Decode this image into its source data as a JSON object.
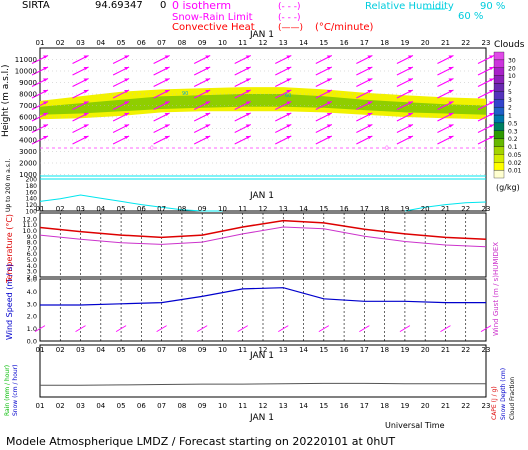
{
  "header": {
    "station": "SIRTA",
    "code": "94.69347",
    "hour_unit": "0",
    "legend_zero_isotherm": "0 isotherm",
    "legend_snow_rain": "Snow-Rain Limit",
    "legend_convective": "Convective Heat",
    "legend_convective_unit": "(°C/minute)",
    "legend_rh": "Relative Humidity",
    "legend_rh_90": "90 %",
    "legend_rh_60": "60 %",
    "legend_sym_dash": "(- - -)",
    "legend_sym_solid": "(——)"
  },
  "footer": {
    "model_line": "Modele Atmospherique LMDZ / Forecast starting on 20220101 at 0hUT",
    "universal_time": "Universal Time"
  },
  "axis": {
    "hours": [
      "01",
      "02",
      "03",
      "04",
      "05",
      "06",
      "07",
      "08",
      "09",
      "10",
      "11",
      "12",
      "13",
      "14",
      "15",
      "16",
      "17",
      "18",
      "19",
      "20",
      "21",
      "22",
      "23"
    ],
    "day_label": "JAN   1"
  },
  "colors": {
    "wind_arrow": "#ff00ff",
    "temperature": "#dd0000",
    "humidex": "#cc33cc",
    "zero_isotherm": "#ff66ff",
    "rel_humidity": "#00e5ee",
    "wind_speed": "#0000cc",
    "precip_line": "#555555",
    "cloud_yellow": "#f2f200",
    "cloud_green": "#8fce00",
    "cloud_green_dark": "#55aa00"
  },
  "chart_data": [
    {
      "panel": "clouds_height",
      "type": "heatmap",
      "ylabel": "Height (m a.s.l.)",
      "ylim": [
        0,
        12000
      ],
      "yticks": [
        1000,
        2000,
        3000,
        4000,
        5000,
        6000,
        7000,
        8000,
        9000,
        10000,
        11000
      ],
      "zero_isotherm_height_m": 3000,
      "zero_isotherm_markers": [
        "0",
        "0"
      ],
      "rh_90_contour_label": "90",
      "rh_60_contour_label": "60",
      "cloud_layer": {
        "x_hours": [
          1,
          3,
          5,
          7,
          9,
          11,
          13,
          15,
          17,
          19,
          21,
          23
        ],
        "base_m": [
          5800,
          5900,
          6100,
          6400,
          6500,
          6500,
          6500,
          6400,
          6200,
          6000,
          5900,
          5800
        ],
        "top_m": [
          7400,
          7800,
          8200,
          8400,
          8500,
          8600,
          8600,
          8400,
          8100,
          7900,
          7700,
          7600
        ],
        "core_base_m": [
          6200,
          6300,
          6500,
          6700,
          6800,
          6900,
          6900,
          6800,
          6600,
          6400,
          6300,
          6200
        ],
        "core_top_m": [
          6900,
          7200,
          7500,
          7800,
          7900,
          8000,
          8000,
          7800,
          7500,
          7300,
          7100,
          7000
        ]
      },
      "wind_arrows_upper": {
        "levels_m": [
          11000,
          10000,
          9000,
          8000,
          7000,
          6000,
          5000,
          4000
        ],
        "x_hours": [
          1,
          3,
          5,
          7,
          9,
          11,
          13,
          15,
          17,
          19,
          21,
          23
        ],
        "direction": "southwest"
      },
      "colorbar": {
        "title": "Clouds",
        "unit": "(g/kg)",
        "labels": [
          "0.01",
          "0.02",
          "0.05",
          "0.1",
          "0.2",
          "0.3",
          "0.5",
          "1",
          "2",
          "3",
          "5",
          "7",
          "10",
          "20",
          "30"
        ],
        "colors": [
          "#ffffd0",
          "#ffff00",
          "#d4ed00",
          "#a3d400",
          "#66b800",
          "#2e9900",
          "#008060",
          "#0077aa",
          "#2060c8",
          "#3344cc",
          "#5533bb",
          "#6a2ab0",
          "#8a22b8",
          "#a822c8",
          "#cc33dd",
          "#e04ae8"
        ]
      }
    },
    {
      "panel": "boundary_layer",
      "type": "line",
      "ylabel": "Up to 200 m a.s.l.",
      "ylim": [
        100,
        200
      ],
      "yticks": [
        100,
        120,
        140,
        160,
        180,
        200
      ],
      "rh_contour_x": [
        1,
        2,
        3,
        4,
        5,
        6,
        7,
        8,
        9,
        10,
        19,
        20,
        21,
        22,
        23
      ],
      "rh_contour_y": [
        130,
        138,
        150,
        140,
        130,
        120,
        112,
        104,
        100,
        100,
        100,
        112,
        120,
        126,
        128
      ],
      "upper_rh_line_m": 180
    },
    {
      "panel": "temperature",
      "type": "line",
      "ylabel": "Temperature (°C)",
      "ylabel2": "HUMIDEX",
      "ylim": [
        2.0,
        13.0
      ],
      "yticks": [
        "2.0",
        "3.0",
        "4.0",
        "5.0",
        "6.0",
        "7.0",
        "8.0",
        "9.0",
        "10.0",
        "11.0",
        "12.0"
      ],
      "x_hours": [
        1,
        3,
        5,
        7,
        9,
        11,
        13,
        15,
        17,
        19,
        21,
        23
      ],
      "series": [
        {
          "name": "Temperature",
          "values": [
            10.5,
            9.8,
            9.2,
            8.8,
            9.2,
            10.6,
            11.7,
            11.3,
            10.2,
            9.4,
            8.8,
            8.5
          ]
        },
        {
          "name": "HUMIDEX",
          "values": [
            9.2,
            8.5,
            7.9,
            7.6,
            8.0,
            9.4,
            10.6,
            10.3,
            9.0,
            8.1,
            7.5,
            7.2
          ]
        }
      ]
    },
    {
      "panel": "wind",
      "type": "line",
      "ylabel": "Wind Speed (m / s)",
      "ylabel2": "Wind Gust (m / s)",
      "ylim": [
        0.0,
        5.0
      ],
      "yticks": [
        "0.0",
        "1.0",
        "2.0",
        "3.0",
        "4.0",
        "5.0"
      ],
      "x_hours": [
        1,
        3,
        5,
        7,
        9,
        11,
        13,
        15,
        17,
        19,
        21,
        23
      ],
      "series": [
        {
          "name": "Wind Speed",
          "values": [
            2.9,
            2.9,
            3.0,
            3.1,
            3.6,
            4.2,
            4.3,
            3.4,
            3.2,
            3.2,
            3.1,
            3.1
          ]
        }
      ],
      "arrows_level": 1.0,
      "arrows_direction": "southwest"
    },
    {
      "panel": "precipitation",
      "type": "line",
      "ylabel": "Rain (mm / hour)",
      "ylabel_b": "Snow (cm / hour)",
      "ylabel2": "CAPE (J / g)",
      "ylabel2_b": "Snow Depth (cm)",
      "ylabel2_c": "Cloud Fraction",
      "ylim": [
        0,
        100
      ],
      "series": [
        {
          "name": "Cloud Fraction",
          "values": [
            30,
            30,
            31,
            32,
            33,
            33,
            34,
            35,
            35,
            34,
            34,
            34
          ]
        }
      ],
      "x_hours": [
        1,
        3,
        5,
        7,
        9,
        11,
        13,
        15,
        17,
        19,
        21,
        23
      ]
    }
  ]
}
